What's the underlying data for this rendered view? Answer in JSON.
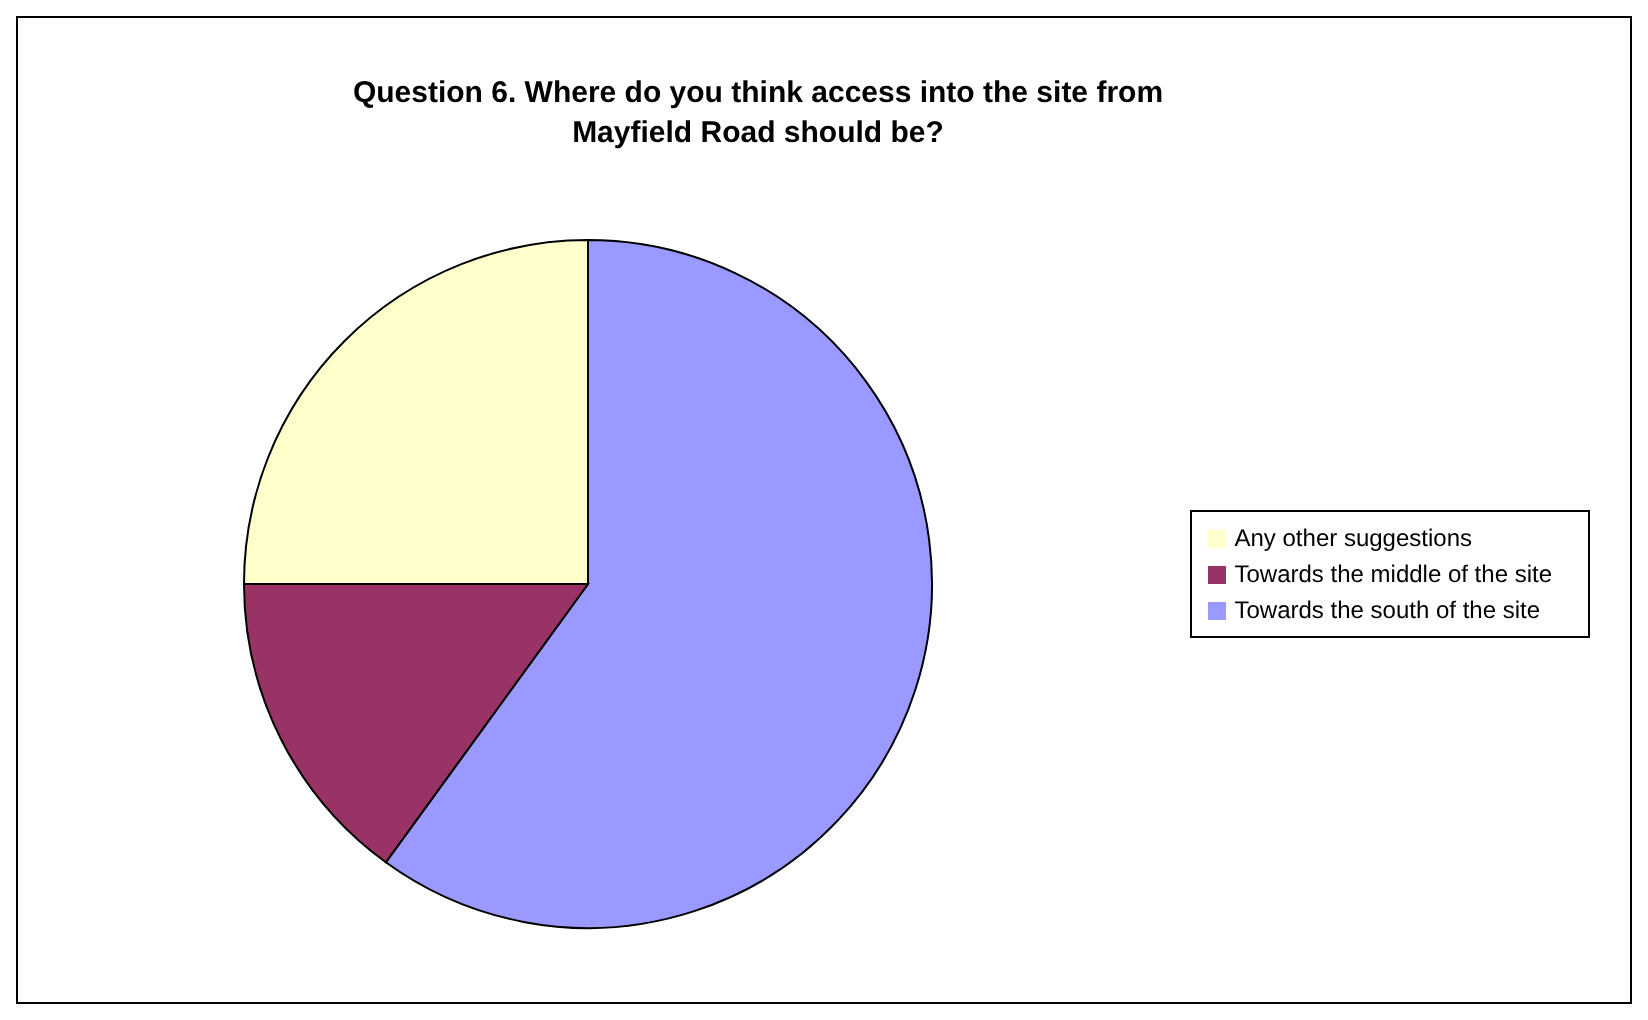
{
  "chart_data": {
    "type": "pie",
    "title": "Question 6. Where do you think access into the site from Mayfield Road should be?",
    "categories": [
      "Towards the south of the site",
      "Towards the middle of the site",
      "Any other suggestions"
    ],
    "values": [
      60,
      15,
      25
    ],
    "colors": [
      "#9999ff",
      "#993366",
      "#ffffcc"
    ],
    "legend": "right"
  }
}
